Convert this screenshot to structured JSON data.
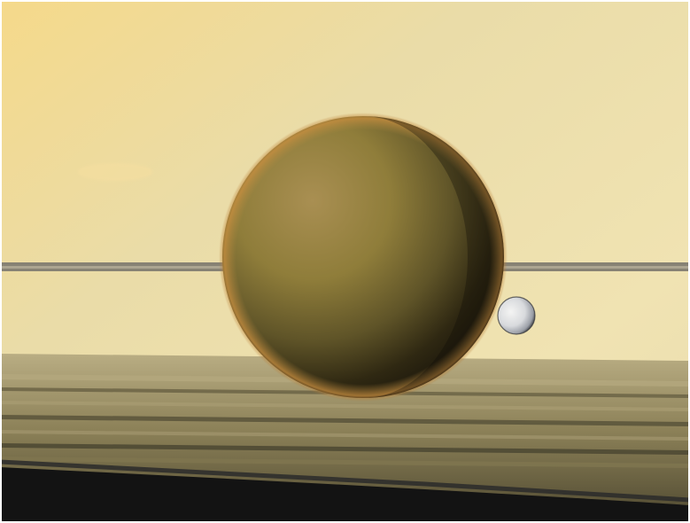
{
  "image": {
    "kind": "space photograph",
    "objects": [
      {
        "name": "planet-background",
        "color": "#e9d9a3"
      },
      {
        "name": "large-moon",
        "color": "#8c7a35"
      },
      {
        "name": "small-moon",
        "color": "#d8dadd"
      },
      {
        "name": "ring-edge-line",
        "color": "#7f7a70"
      },
      {
        "name": "ring-shadow-bands",
        "color": "#8a7e58"
      },
      {
        "name": "space-shadow",
        "color": "#111111"
      }
    ]
  }
}
